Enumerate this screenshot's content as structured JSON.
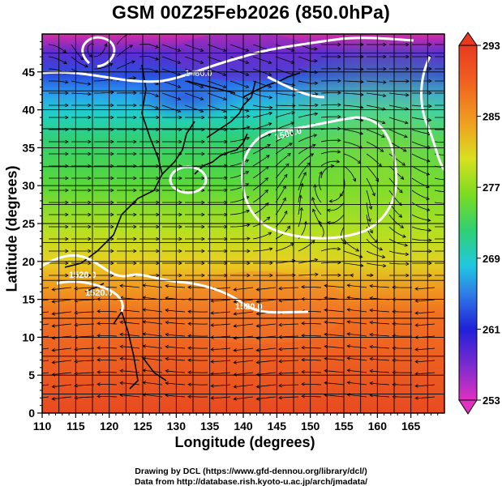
{
  "title": "GSM 00Z25Feb2026 (850.0hPa)",
  "x_axis": {
    "label": "Longitude (degrees)",
    "ticks": [
      "110",
      "115",
      "120",
      "125",
      "130",
      "135",
      "140",
      "145",
      "150",
      "155",
      "160",
      "165"
    ],
    "range": [
      110,
      170
    ]
  },
  "y_axis": {
    "label": "Latitude  (degrees)",
    "ticks": [
      "0",
      "5",
      "10",
      "15",
      "20",
      "25",
      "30",
      "35",
      "40",
      "45"
    ],
    "range": [
      0,
      50
    ]
  },
  "colorbar": {
    "labels": [
      "293",
      "285",
      "277",
      "269",
      "261",
      "253"
    ],
    "range": [
      253,
      293
    ],
    "colors": [
      "#e030c0",
      "#7a2bd0",
      "#2020d8",
      "#2f7de8",
      "#20c8e0",
      "#30d070",
      "#7cdc20",
      "#d8e020",
      "#f0a020",
      "#f06020",
      "#e83a20"
    ]
  },
  "contour_labels": [
    "1480.0",
    "1500.0",
    "1520.0",
    "1520.0",
    "1520.0"
  ],
  "credits": {
    "line1": "Drawing by DCL (https://www.gfd-dennou.org/library/dcl/)",
    "line2": "Data from http://database.rish.kyoto-u.ac.jp/arch/jmadata/"
  }
}
